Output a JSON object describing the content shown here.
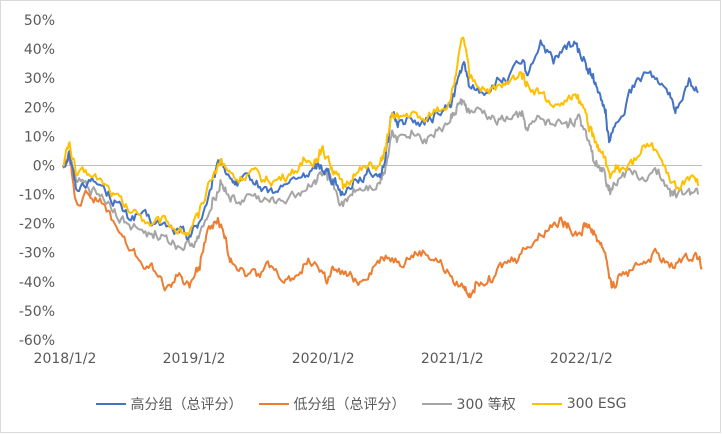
{
  "chart_data": {
    "type": "line",
    "title": "",
    "xlabel": "",
    "ylabel": "",
    "ylim": [
      -60,
      50
    ],
    "yticks": [
      50,
      40,
      30,
      20,
      10,
      0,
      -10,
      -20,
      -30,
      -40,
      -50,
      -60
    ],
    "ytick_labels": [
      "50%",
      "40%",
      "30%",
      "20%",
      "10%",
      "0%",
      "-10%",
      "-20%",
      "-30%",
      "-40%",
      "-50%",
      "-60%"
    ],
    "xlim": [
      2018.0,
      2022.95
    ],
    "xticks": [
      2018.0,
      2019.0,
      2020.0,
      2021.0,
      2022.0
    ],
    "xtick_labels": [
      "2018/1/2",
      "2019/1/2",
      "2020/1/2",
      "2021/1/2",
      "2022/1/2"
    ],
    "legend_position": "bottom",
    "series": [
      {
        "name": "高分组（总评分）",
        "color": "#4472C4",
        "points": [
          [
            2018.0,
            0
          ],
          [
            2018.05,
            5
          ],
          [
            2018.1,
            -8
          ],
          [
            2018.2,
            -5
          ],
          [
            2018.3,
            -7
          ],
          [
            2018.4,
            -12
          ],
          [
            2018.5,
            -18
          ],
          [
            2018.6,
            -17
          ],
          [
            2018.7,
            -20
          ],
          [
            2018.8,
            -21
          ],
          [
            2018.9,
            -23
          ],
          [
            2018.98,
            -24
          ],
          [
            2019.05,
            -20
          ],
          [
            2019.15,
            -8
          ],
          [
            2019.22,
            2
          ],
          [
            2019.28,
            -3
          ],
          [
            2019.35,
            -7
          ],
          [
            2019.45,
            -5
          ],
          [
            2019.55,
            -8
          ],
          [
            2019.65,
            -9
          ],
          [
            2019.75,
            -6
          ],
          [
            2019.85,
            -4
          ],
          [
            2019.95,
            -1
          ],
          [
            2020.0,
            0
          ],
          [
            2020.05,
            -2
          ],
          [
            2020.1,
            -5
          ],
          [
            2020.17,
            -10
          ],
          [
            2020.25,
            -5
          ],
          [
            2020.35,
            -3
          ],
          [
            2020.45,
            -3
          ],
          [
            2020.5,
            3
          ],
          [
            2020.55,
            18
          ],
          [
            2020.6,
            15
          ],
          [
            2020.7,
            16
          ],
          [
            2020.8,
            14
          ],
          [
            2020.9,
            18
          ],
          [
            2021.0,
            20
          ],
          [
            2021.05,
            28
          ],
          [
            2021.1,
            35
          ],
          [
            2021.15,
            27
          ],
          [
            2021.25,
            25
          ],
          [
            2021.35,
            28
          ],
          [
            2021.45,
            30
          ],
          [
            2021.55,
            35
          ],
          [
            2021.6,
            31
          ],
          [
            2021.7,
            43
          ],
          [
            2021.8,
            35
          ],
          [
            2021.9,
            40
          ],
          [
            2021.98,
            42
          ],
          [
            2022.05,
            35
          ],
          [
            2022.1,
            30
          ],
          [
            2022.15,
            25
          ],
          [
            2022.2,
            18
          ],
          [
            2022.23,
            8
          ],
          [
            2022.3,
            15
          ],
          [
            2022.4,
            25
          ],
          [
            2022.5,
            32
          ],
          [
            2022.6,
            30
          ],
          [
            2022.7,
            25
          ],
          [
            2022.75,
            20
          ],
          [
            2022.85,
            30
          ],
          [
            2022.92,
            25
          ]
        ]
      },
      {
        "name": "低分组（总评分）",
        "color": "#ED7D31",
        "points": [
          [
            2018.0,
            0
          ],
          [
            2018.05,
            3
          ],
          [
            2018.1,
            -12
          ],
          [
            2018.2,
            -10
          ],
          [
            2018.3,
            -13
          ],
          [
            2018.4,
            -20
          ],
          [
            2018.5,
            -28
          ],
          [
            2018.6,
            -33
          ],
          [
            2018.7,
            -36
          ],
          [
            2018.8,
            -42
          ],
          [
            2018.9,
            -37
          ],
          [
            2018.98,
            -42
          ],
          [
            2019.05,
            -35
          ],
          [
            2019.12,
            -22
          ],
          [
            2019.2,
            -18
          ],
          [
            2019.25,
            -25
          ],
          [
            2019.3,
            -32
          ],
          [
            2019.4,
            -36
          ],
          [
            2019.5,
            -38
          ],
          [
            2019.6,
            -35
          ],
          [
            2019.7,
            -40
          ],
          [
            2019.8,
            -38
          ],
          [
            2019.9,
            -32
          ],
          [
            2020.0,
            -36
          ],
          [
            2020.05,
            -40
          ],
          [
            2020.1,
            -36
          ],
          [
            2020.2,
            -38
          ],
          [
            2020.3,
            -40
          ],
          [
            2020.4,
            -35
          ],
          [
            2020.5,
            -31
          ],
          [
            2020.6,
            -33
          ],
          [
            2020.7,
            -31
          ],
          [
            2020.8,
            -30
          ],
          [
            2020.9,
            -33
          ],
          [
            2021.0,
            -38
          ],
          [
            2021.1,
            -42
          ],
          [
            2021.15,
            -44
          ],
          [
            2021.2,
            -40
          ],
          [
            2021.3,
            -38
          ],
          [
            2021.4,
            -35
          ],
          [
            2021.5,
            -32
          ],
          [
            2021.6,
            -28
          ],
          [
            2021.7,
            -24
          ],
          [
            2021.8,
            -20
          ],
          [
            2021.85,
            -18
          ],
          [
            2021.92,
            -21
          ],
          [
            2022.0,
            -23
          ],
          [
            2022.05,
            -20
          ],
          [
            2022.1,
            -22
          ],
          [
            2022.15,
            -26
          ],
          [
            2022.2,
            -30
          ],
          [
            2022.25,
            -42
          ],
          [
            2022.3,
            -38
          ],
          [
            2022.4,
            -36
          ],
          [
            2022.5,
            -33
          ],
          [
            2022.6,
            -30
          ],
          [
            2022.7,
            -35
          ],
          [
            2022.8,
            -32
          ],
          [
            2022.9,
            -30
          ],
          [
            2022.95,
            -35
          ]
        ]
      },
      {
        "name": "300 等权",
        "color": "#A5A5A5",
        "points": [
          [
            2018.0,
            0
          ],
          [
            2018.05,
            3
          ],
          [
            2018.1,
            -5
          ],
          [
            2018.2,
            -8
          ],
          [
            2018.3,
            -10
          ],
          [
            2018.4,
            -15
          ],
          [
            2018.5,
            -20
          ],
          [
            2018.6,
            -22
          ],
          [
            2018.7,
            -25
          ],
          [
            2018.8,
            -24
          ],
          [
            2018.9,
            -28
          ],
          [
            2018.98,
            -27
          ],
          [
            2019.05,
            -25
          ],
          [
            2019.15,
            -15
          ],
          [
            2019.22,
            -5
          ],
          [
            2019.28,
            -10
          ],
          [
            2019.35,
            -13
          ],
          [
            2019.45,
            -10
          ],
          [
            2019.55,
            -12
          ],
          [
            2019.65,
            -13
          ],
          [
            2019.75,
            -11
          ],
          [
            2019.85,
            -9
          ],
          [
            2019.95,
            -5
          ],
          [
            2020.0,
            -3
          ],
          [
            2020.05,
            -5
          ],
          [
            2020.1,
            -8
          ],
          [
            2020.17,
            -14
          ],
          [
            2020.25,
            -8
          ],
          [
            2020.35,
            -7
          ],
          [
            2020.45,
            -6
          ],
          [
            2020.5,
            0
          ],
          [
            2020.55,
            12
          ],
          [
            2020.6,
            10
          ],
          [
            2020.7,
            12
          ],
          [
            2020.8,
            9
          ],
          [
            2020.9,
            12
          ],
          [
            2021.0,
            15
          ],
          [
            2021.05,
            20
          ],
          [
            2021.1,
            22
          ],
          [
            2021.15,
            18
          ],
          [
            2021.25,
            18
          ],
          [
            2021.35,
            15
          ],
          [
            2021.45,
            16
          ],
          [
            2021.55,
            17
          ],
          [
            2021.6,
            12
          ],
          [
            2021.7,
            16
          ],
          [
            2021.8,
            14
          ],
          [
            2021.9,
            15
          ],
          [
            2021.98,
            16
          ],
          [
            2022.05,
            12
          ],
          [
            2022.1,
            5
          ],
          [
            2022.15,
            0
          ],
          [
            2022.2,
            -3
          ],
          [
            2022.23,
            -7
          ],
          [
            2022.3,
            -5
          ],
          [
            2022.4,
            -2
          ],
          [
            2022.5,
            -5
          ],
          [
            2022.6,
            -3
          ],
          [
            2022.7,
            -8
          ],
          [
            2022.75,
            -11
          ],
          [
            2022.85,
            -8
          ],
          [
            2022.92,
            -10
          ]
        ]
      },
      {
        "name": "300 ESG",
        "color": "#FFC000",
        "points": [
          [
            2018.0,
            0
          ],
          [
            2018.05,
            8
          ],
          [
            2018.1,
            -3
          ],
          [
            2018.2,
            -3
          ],
          [
            2018.3,
            -5
          ],
          [
            2018.4,
            -10
          ],
          [
            2018.5,
            -15
          ],
          [
            2018.6,
            -17
          ],
          [
            2018.7,
            -20
          ],
          [
            2018.8,
            -19
          ],
          [
            2018.9,
            -22
          ],
          [
            2018.98,
            -23
          ],
          [
            2019.05,
            -18
          ],
          [
            2019.15,
            -5
          ],
          [
            2019.22,
            2
          ],
          [
            2019.28,
            -2
          ],
          [
            2019.35,
            -5
          ],
          [
            2019.45,
            -2
          ],
          [
            2019.55,
            -5
          ],
          [
            2019.65,
            -5
          ],
          [
            2019.75,
            -3
          ],
          [
            2019.85,
            0
          ],
          [
            2019.95,
            2
          ],
          [
            2020.0,
            5
          ],
          [
            2020.05,
            3
          ],
          [
            2020.1,
            -2
          ],
          [
            2020.17,
            -8
          ],
          [
            2020.25,
            -3
          ],
          [
            2020.35,
            -1
          ],
          [
            2020.45,
            0
          ],
          [
            2020.5,
            5
          ],
          [
            2020.55,
            18
          ],
          [
            2020.6,
            16
          ],
          [
            2020.7,
            18
          ],
          [
            2020.8,
            15
          ],
          [
            2020.9,
            20
          ],
          [
            2021.0,
            22
          ],
          [
            2021.05,
            33
          ],
          [
            2021.1,
            44
          ],
          [
            2021.15,
            30
          ],
          [
            2021.25,
            27
          ],
          [
            2021.35,
            26
          ],
          [
            2021.45,
            28
          ],
          [
            2021.55,
            32
          ],
          [
            2021.6,
            28
          ],
          [
            2021.7,
            25
          ],
          [
            2021.8,
            20
          ],
          [
            2021.9,
            22
          ],
          [
            2021.98,
            23
          ],
          [
            2022.05,
            18
          ],
          [
            2022.1,
            10
          ],
          [
            2022.15,
            5
          ],
          [
            2022.2,
            3
          ],
          [
            2022.23,
            -2
          ],
          [
            2022.3,
            0
          ],
          [
            2022.4,
            2
          ],
          [
            2022.5,
            7
          ],
          [
            2022.6,
            5
          ],
          [
            2022.7,
            -5
          ],
          [
            2022.75,
            -8
          ],
          [
            2022.85,
            -5
          ],
          [
            2022.92,
            -7
          ]
        ]
      }
    ]
  }
}
